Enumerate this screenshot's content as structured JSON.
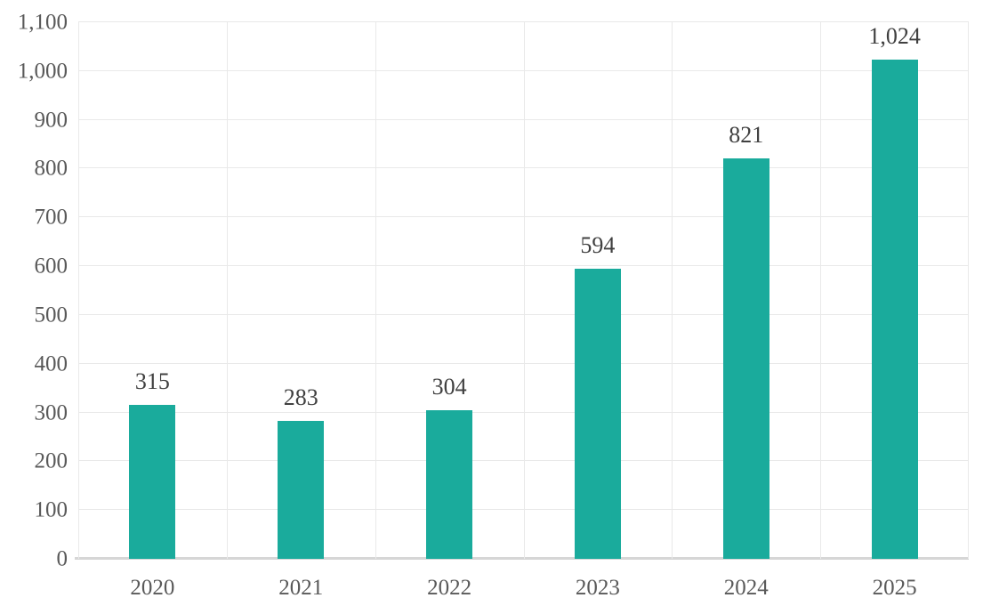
{
  "chart_data": {
    "type": "bar",
    "title": "",
    "xlabel": "",
    "ylabel": "",
    "categories": [
      "2020",
      "2021",
      "2022",
      "2023",
      "2024",
      "2025"
    ],
    "values": [
      315,
      283,
      304,
      594,
      821,
      1024
    ],
    "value_labels": [
      "315",
      "283",
      "304",
      "594",
      "821",
      "1,024"
    ],
    "ylim": [
      0,
      1100
    ],
    "ytick_step": 100,
    "yticks": [
      {
        "value": 0,
        "label": "0"
      },
      {
        "value": 100,
        "label": "100"
      },
      {
        "value": 200,
        "label": "200"
      },
      {
        "value": 300,
        "label": "300"
      },
      {
        "value": 400,
        "label": "400"
      },
      {
        "value": 500,
        "label": "500"
      },
      {
        "value": 600,
        "label": "600"
      },
      {
        "value": 700,
        "label": "700"
      },
      {
        "value": 800,
        "label": "800"
      },
      {
        "value": 900,
        "label": "900"
      },
      {
        "value": 1000,
        "label": "1,000"
      },
      {
        "value": 1100,
        "label": "1,100"
      }
    ],
    "grid": true,
    "legend_position": "none",
    "colors": {
      "bar": "#1AAB9C",
      "data_label": "#404040",
      "tick_label": "#595959",
      "gridline": "#E9E9E9",
      "axis_line": "#D6D6D6",
      "background": "#FFFFFF"
    }
  }
}
